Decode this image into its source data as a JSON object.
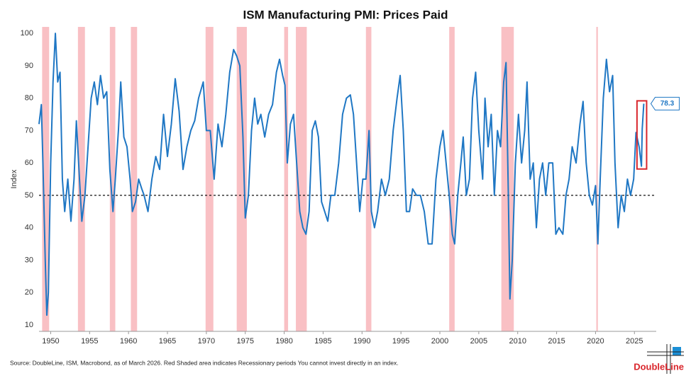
{
  "chart_data": {
    "type": "line",
    "title": "ISM Manufacturing PMI: Prices Paid",
    "y_label": "Index",
    "source": "Source: DoubleLine, ISM, Macrobond, as of March 2026. Red Shaded area indicates Recessionary periods You cannot invest directly in an index.",
    "logo": "DoubleLine",
    "xlim": [
      1948.5,
      2027.8
    ],
    "xticks": [
      1950,
      1955,
      1960,
      1965,
      1970,
      1975,
      1980,
      1985,
      1990,
      1995,
      2000,
      2005,
      2010,
      2015,
      2020,
      2025
    ],
    "ylim": [
      8,
      102
    ],
    "yticks": [
      10,
      20,
      30,
      40,
      50,
      60,
      70,
      80,
      90,
      100
    ],
    "reference_line": 50,
    "recession_color": "#f9c0c4",
    "recessions": [
      [
        1948.9,
        1949.8
      ],
      [
        1953.5,
        1954.4
      ],
      [
        1957.6,
        1958.3
      ],
      [
        1960.3,
        1961.1
      ],
      [
        1969.9,
        1970.9
      ],
      [
        1973.9,
        1975.2
      ],
      [
        1980.0,
        1980.5
      ],
      [
        1981.5,
        1982.9
      ],
      [
        1990.5,
        1991.2
      ],
      [
        2001.2,
        2001.9
      ],
      [
        2007.9,
        2009.5
      ],
      [
        2020.1,
        2020.3
      ]
    ],
    "x": [
      1948.5,
      1948.8,
      1949.0,
      1949.3,
      1949.5,
      1949.7,
      1950.0,
      1950.3,
      1950.6,
      1950.9,
      1951.2,
      1951.5,
      1951.8,
      1952.2,
      1952.6,
      1953.0,
      1953.3,
      1953.7,
      1954.0,
      1954.4,
      1954.8,
      1955.2,
      1955.6,
      1956.0,
      1956.4,
      1956.8,
      1957.2,
      1957.6,
      1958.0,
      1958.3,
      1958.7,
      1959.0,
      1959.4,
      1959.8,
      1960.2,
      1960.5,
      1960.9,
      1961.3,
      1961.7,
      1962.0,
      1962.5,
      1963.0,
      1963.5,
      1964.0,
      1964.5,
      1965.0,
      1965.5,
      1966.0,
      1966.5,
      1967.0,
      1967.5,
      1968.0,
      1968.5,
      1969.0,
      1969.6,
      1970.0,
      1970.5,
      1971.0,
      1971.5,
      1972.0,
      1972.5,
      1973.0,
      1973.5,
      1973.9,
      1974.3,
      1974.7,
      1975.0,
      1975.4,
      1975.8,
      1976.2,
      1976.6,
      1977.0,
      1977.5,
      1978.0,
      1978.5,
      1979.0,
      1979.4,
      1979.8,
      1980.1,
      1980.4,
      1980.8,
      1981.2,
      1981.6,
      1982.0,
      1982.4,
      1982.8,
      1983.2,
      1983.6,
      1984.0,
      1984.4,
      1984.8,
      1985.2,
      1985.6,
      1986.0,
      1986.5,
      1987.0,
      1987.5,
      1988.0,
      1988.5,
      1988.9,
      1989.3,
      1989.7,
      1990.1,
      1990.5,
      1990.9,
      1991.2,
      1991.6,
      1992.0,
      1992.5,
      1993.0,
      1993.5,
      1994.0,
      1994.5,
      1994.9,
      1995.3,
      1995.7,
      1996.1,
      1996.5,
      1997.0,
      1997.5,
      1998.0,
      1998.5,
      1999.0,
      1999.5,
      2000.0,
      2000.4,
      2000.8,
      2001.2,
      2001.6,
      2001.9,
      2002.3,
      2002.7,
      2003.0,
      2003.4,
      2003.8,
      2004.2,
      2004.6,
      2005.0,
      2005.5,
      2005.8,
      2006.2,
      2006.6,
      2007.0,
      2007.4,
      2007.8,
      2008.2,
      2008.5,
      2008.8,
      2009.0,
      2009.3,
      2009.7,
      2010.1,
      2010.5,
      2010.9,
      2011.2,
      2011.6,
      2012.0,
      2012.4,
      2012.8,
      2013.2,
      2013.6,
      2014.0,
      2014.5,
      2014.9,
      2015.3,
      2015.8,
      2016.2,
      2016.6,
      2017.0,
      2017.5,
      2018.0,
      2018.4,
      2018.8,
      2019.2,
      2019.6,
      2020.0,
      2020.3,
      2020.6,
      2021.0,
      2021.4,
      2021.8,
      2022.2,
      2022.5,
      2022.9,
      2023.3,
      2023.7,
      2024.1,
      2024.5,
      2024.9,
      2025.2,
      2025.6,
      2025.9,
      2026.0,
      2026.2
    ],
    "series": [
      {
        "color": "#1f77c4",
        "values": [
          72,
          78,
          60,
          30,
          13,
          20,
          60,
          85,
          100,
          85,
          88,
          55,
          45,
          55,
          42,
          55,
          73,
          55,
          42,
          50,
          65,
          80,
          85,
          78,
          87,
          80,
          82,
          58,
          45,
          55,
          70,
          85,
          68,
          65,
          55,
          45,
          48,
          55,
          52,
          50,
          45,
          55,
          62,
          58,
          75,
          62,
          72,
          86,
          76,
          58,
          65,
          70,
          73,
          80,
          85,
          70,
          70,
          55,
          72,
          65,
          75,
          88,
          95,
          93,
          90,
          68,
          43,
          50,
          70,
          80,
          72,
          75,
          68,
          75,
          78,
          88,
          92,
          87,
          84,
          60,
          72,
          75,
          60,
          45,
          40,
          38,
          45,
          70,
          73,
          68,
          48,
          45,
          42,
          50,
          50,
          60,
          75,
          80,
          81,
          75,
          60,
          45,
          55,
          55,
          70,
          45,
          40,
          45,
          55,
          50,
          55,
          70,
          80,
          87,
          70,
          45,
          45,
          52,
          50,
          50,
          45,
          35,
          35,
          55,
          65,
          70,
          60,
          50,
          38,
          35,
          50,
          60,
          68,
          50,
          55,
          80,
          88,
          70,
          55,
          80,
          65,
          75,
          50,
          70,
          65,
          85,
          91,
          50,
          18,
          30,
          60,
          75,
          60,
          70,
          85,
          55,
          60,
          40,
          55,
          60,
          50,
          60,
          60,
          38,
          40,
          38,
          50,
          55,
          65,
          60,
          72,
          79,
          60,
          50,
          47,
          53,
          35,
          55,
          80,
          92,
          82,
          87,
          60,
          40,
          50,
          45,
          55,
          50,
          55,
          69.4,
          65,
          59,
          70.5,
          78.3
        ]
      }
    ]
  }
}
